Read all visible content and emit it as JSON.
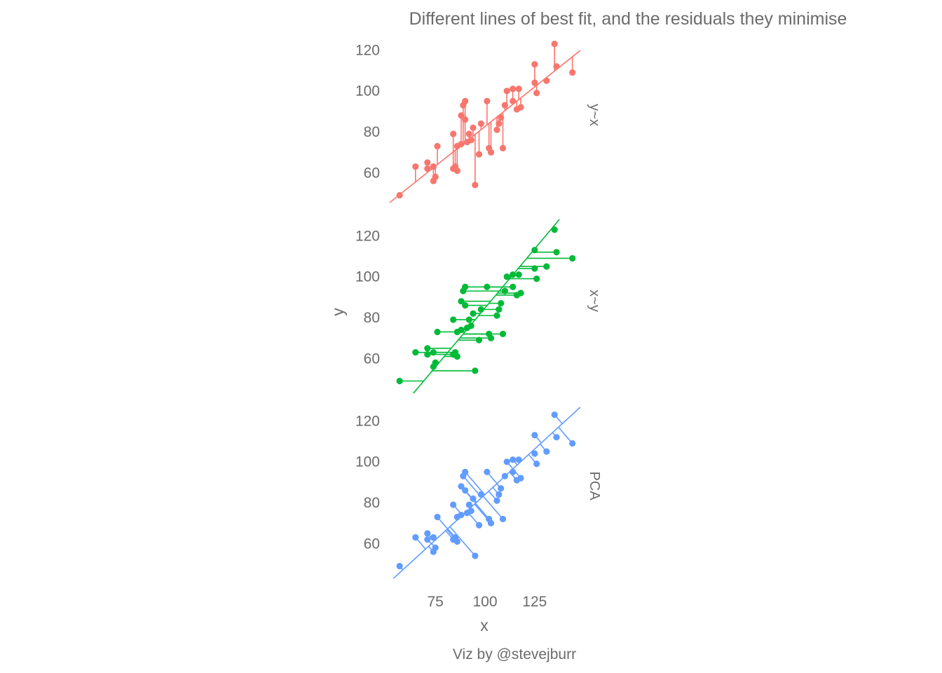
{
  "chart_data": {
    "type": "scatter",
    "title": "Different lines of best fit, and the residuals they minimise",
    "xlabel": "x",
    "ylabel": "y",
    "caption": "Viz by @stevejburr",
    "xlim": [
      52,
      148
    ],
    "ylim": [
      43,
      128
    ],
    "xticks": [
      "75",
      "100",
      "125"
    ],
    "yticks": [
      "60",
      "80",
      "100",
      "120"
    ],
    "grid": false,
    "legend": "none",
    "points": [
      {
        "x": 57,
        "y": 49
      },
      {
        "x": 65,
        "y": 63
      },
      {
        "x": 71,
        "y": 65
      },
      {
        "x": 71,
        "y": 62
      },
      {
        "x": 74,
        "y": 63
      },
      {
        "x": 74,
        "y": 56
      },
      {
        "x": 75,
        "y": 58
      },
      {
        "x": 76,
        "y": 73
      },
      {
        "x": 84,
        "y": 62
      },
      {
        "x": 84,
        "y": 79
      },
      {
        "x": 85,
        "y": 63
      },
      {
        "x": 86,
        "y": 73
      },
      {
        "x": 86,
        "y": 61
      },
      {
        "x": 88,
        "y": 88
      },
      {
        "x": 88,
        "y": 74
      },
      {
        "x": 89,
        "y": 93
      },
      {
        "x": 90,
        "y": 95
      },
      {
        "x": 90,
        "y": 86
      },
      {
        "x": 91,
        "y": 75
      },
      {
        "x": 92,
        "y": 79
      },
      {
        "x": 93,
        "y": 76
      },
      {
        "x": 94,
        "y": 82
      },
      {
        "x": 95,
        "y": 54
      },
      {
        "x": 97,
        "y": 69
      },
      {
        "x": 98,
        "y": 84
      },
      {
        "x": 101,
        "y": 95
      },
      {
        "x": 102,
        "y": 72
      },
      {
        "x": 103,
        "y": 70
      },
      {
        "x": 106,
        "y": 81
      },
      {
        "x": 107,
        "y": 84
      },
      {
        "x": 108,
        "y": 87
      },
      {
        "x": 109,
        "y": 72
      },
      {
        "x": 110,
        "y": 93
      },
      {
        "x": 111,
        "y": 100
      },
      {
        "x": 114,
        "y": 101
      },
      {
        "x": 114,
        "y": 95
      },
      {
        "x": 116,
        "y": 91
      },
      {
        "x": 117,
        "y": 101
      },
      {
        "x": 118,
        "y": 92
      },
      {
        "x": 125,
        "y": 104
      },
      {
        "x": 125,
        "y": 113
      },
      {
        "x": 126,
        "y": 99
      },
      {
        "x": 131,
        "y": 105
      },
      {
        "x": 135,
        "y": 123
      },
      {
        "x": 136,
        "y": 112
      },
      {
        "x": 144,
        "y": 109
      }
    ],
    "series": [
      {
        "name": "y~x",
        "color": "#F8766D",
        "residual": "vertical",
        "line": {
          "slope": 0.775,
          "intercept": 5.1
        }
      },
      {
        "name": "x~y",
        "color": "#00BA38",
        "residual": "horizontal",
        "line": {
          "slope": 1.156,
          "intercept": -30.9
        }
      },
      {
        "name": "PCA",
        "color": "#619CFF",
        "residual": "perpendicular",
        "line": {
          "slope": 0.89,
          "intercept": -5.0
        }
      }
    ]
  }
}
